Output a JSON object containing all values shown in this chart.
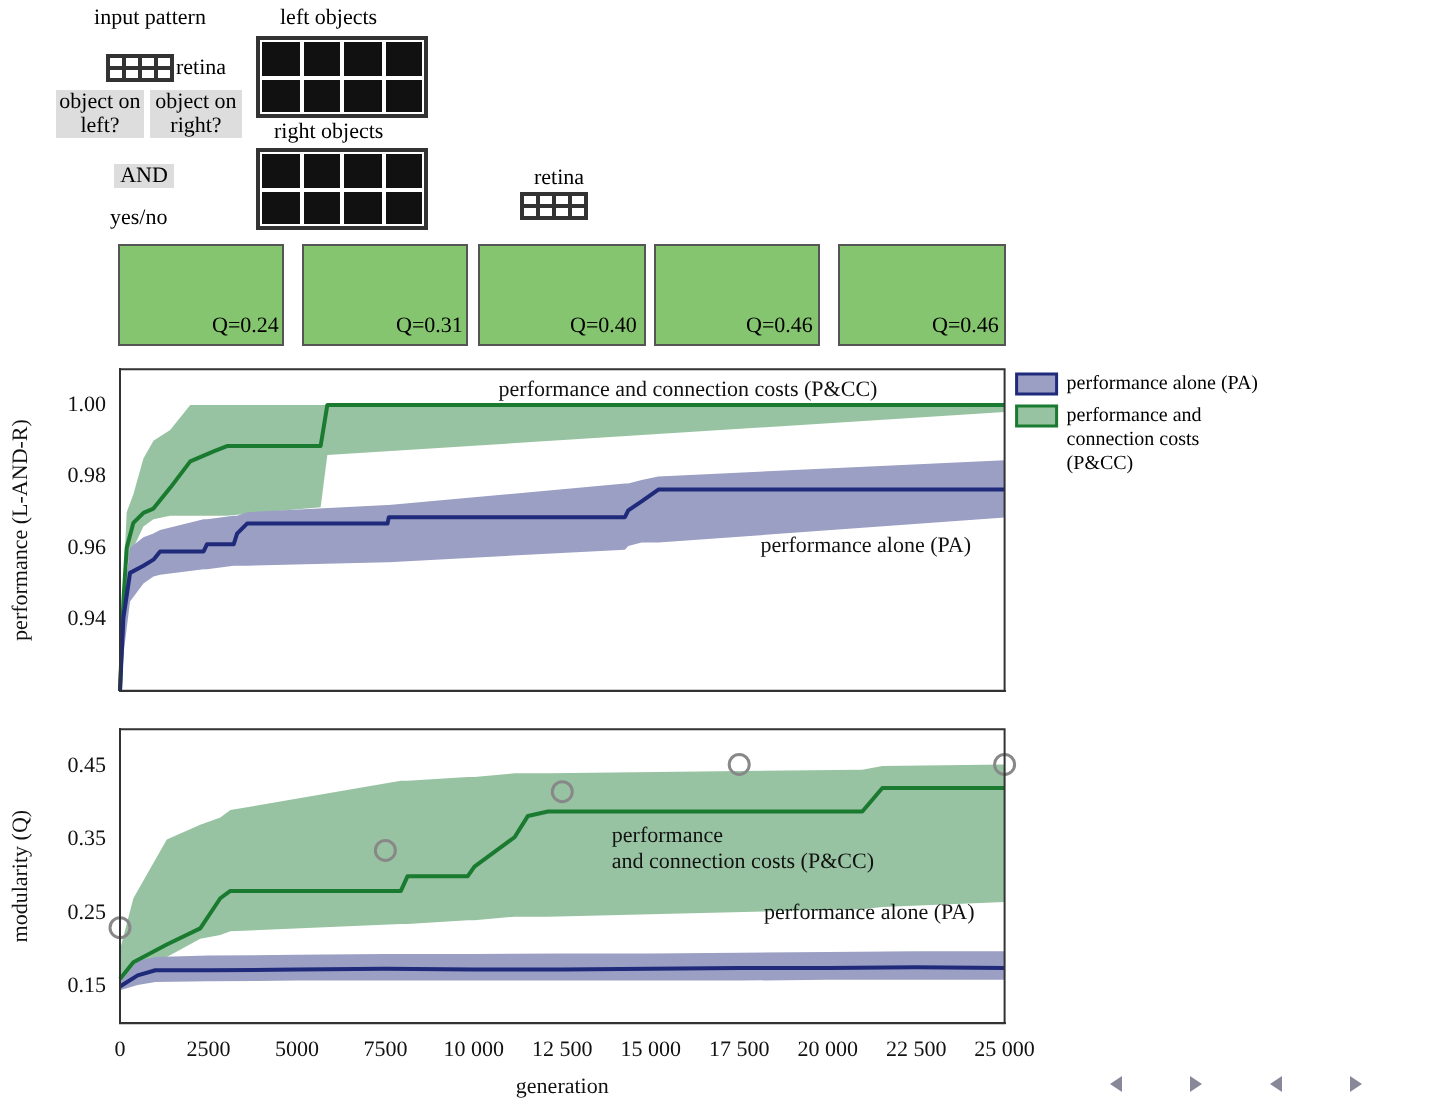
{
  "chart_data": [
    {
      "type": "line",
      "ylabel": "performance (L-AND-R)",
      "xlim": [
        0,
        25000
      ],
      "ylim": [
        0.92,
        1.01
      ],
      "xticks": [
        0,
        2500,
        5000,
        7500,
        10000,
        12500,
        15000,
        17500,
        20000,
        22500,
        25000
      ],
      "yticks": [
        0.94,
        0.96,
        0.98,
        {
          "value": 1,
          "label": "1.00"
        }
      ],
      "tick_labels": "y",
      "grid": false,
      "legend": "top right",
      "marker": "none",
      "line_style": "solid",
      "annotations": [
        "input pattern",
        "retina",
        "object on left?",
        "object on right?",
        "AND",
        "yes/no",
        "left objects",
        "right objects",
        "retina",
        "Q=0.24",
        "Q=0.31",
        "Q=0.40",
        "Q=0.46",
        "Q=0.46"
      ],
      "series": [
        {
          "name": "performance alone (PA)",
          "color": "#1f2a7a",
          "x": [
            0,
            95,
            284,
            662,
            945,
            1134,
            2363,
            2457,
            3213,
            3308,
            3591,
            7560,
            7598,
            14270,
            14364,
            14742,
            15215,
            25000
          ],
          "values": [
            0.92,
            0.9404,
            0.953,
            0.955,
            0.9567,
            0.959,
            0.959,
            0.961,
            0.961,
            0.964,
            0.9668,
            0.9668,
            0.9686,
            0.9686,
            0.9705,
            0.973,
            0.9763,
            0.9763
          ],
          "upper": [
            0.92,
            0.945,
            0.96,
            0.963,
            0.964,
            0.965,
            0.968,
            0.968,
            0.969,
            0.969,
            0.97,
            0.972,
            0.972,
            0.978,
            0.978,
            0.979,
            0.98,
            0.9845
          ],
          "lower": [
            0.92,
            0.93,
            0.945,
            0.95,
            0.952,
            0.9525,
            0.954,
            0.954,
            0.955,
            0.955,
            0.955,
            0.956,
            0.956,
            0.9595,
            0.9605,
            0.9615,
            0.9615,
            0.9685
          ]
        },
        {
          "name": "performance and connection costs (P&CC)",
          "color": "#1a7a30",
          "x": [
            0,
            95,
            189,
            378,
            662,
            945,
            1418,
            1985,
            2646,
            3024,
            5670,
            5860,
            25000
          ],
          "values": [
            0.92,
            0.945,
            0.96,
            0.967,
            0.9698,
            0.971,
            0.9768,
            0.9842,
            0.987,
            0.9885,
            0.9885,
            1.0,
            1.0
          ],
          "upper": [
            0.92,
            0.95,
            0.97,
            0.975,
            0.985,
            0.99,
            0.993,
            1.0,
            1.0,
            1.0,
            1.0,
            1.0,
            1.0
          ],
          "lower": [
            0.92,
            0.94,
            0.955,
            0.96,
            0.966,
            0.968,
            0.969,
            0.969,
            0.969,
            0.969,
            0.9714,
            0.986,
            0.998
          ]
        }
      ]
    },
    {
      "type": "line",
      "xlabel": "generation",
      "ylabel": "modularity (Q)",
      "xlim": [
        0,
        25000
      ],
      "ylim": [
        0.1,
        0.5
      ],
      "xticks": [
        0,
        2500,
        5000,
        7500,
        {
          "value": 10000,
          "label": "10 000"
        },
        {
          "value": 12500,
          "label": "12 500"
        },
        {
          "value": 15000,
          "label": "15 000"
        },
        {
          "value": 17500,
          "label": "17 500"
        },
        {
          "value": 20000,
          "label": "20 000"
        },
        {
          "value": 22500,
          "label": "22 500"
        },
        {
          "value": 25000,
          "label": "25 000"
        }
      ],
      "yticks": [
        0.15,
        0.25,
        0.35,
        0.45
      ],
      "grid": false,
      "marker": "none",
      "line_style": "solid",
      "series": [
        {
          "name": "performance alone (PA)",
          "color": "#1f2a7a",
          "x": [
            0,
            500,
            1000,
            2500,
            5000,
            7500,
            10000,
            12500,
            15000,
            17500,
            20000,
            22500,
            25000
          ],
          "values": [
            0.15,
            0.165,
            0.172,
            0.172,
            0.173,
            0.174,
            0.173,
            0.173,
            0.174,
            0.175,
            0.175,
            0.176,
            0.175
          ],
          "upper": [
            0.155,
            0.185,
            0.19,
            0.192,
            0.193,
            0.194,
            0.194,
            0.195,
            0.195,
            0.196,
            0.197,
            0.198,
            0.198
          ],
          "lower": [
            0.145,
            0.152,
            0.156,
            0.157,
            0.158,
            0.158,
            0.158,
            0.158,
            0.158,
            0.158,
            0.159,
            0.159,
            0.159
          ]
        },
        {
          "name": "performance and connection costs (P&CC)",
          "color": "#1a7a30",
          "x": [
            0,
            378,
            1323,
            2268,
            2835,
            3119,
            7938,
            8127,
            9828,
            10017,
            11151,
            11529,
            12096,
            20979,
            21546,
            25000
          ],
          "values": [
            0.16,
            0.183,
            0.207,
            0.229,
            0.27,
            0.28,
            0.28,
            0.3,
            0.3,
            0.313,
            0.353,
            0.382,
            0.388,
            0.388,
            0.42,
            0.42
          ],
          "upper": [
            0.2,
            0.27,
            0.35,
            0.37,
            0.38,
            0.39,
            0.43,
            0.43,
            0.435,
            0.435,
            0.44,
            0.44,
            0.44,
            0.445,
            0.45,
            0.452
          ],
          "lower": [
            0.15,
            0.17,
            0.19,
            0.215,
            0.22,
            0.225,
            0.235,
            0.235,
            0.24,
            0.24,
            0.245,
            0.245,
            0.245,
            0.255,
            0.258,
            0.265
          ]
        },
        {
          "type": "scatter",
          "color": "#888888",
          "marker": "circle",
          "x": [
            0,
            7500,
            12500,
            17500,
            25000
          ],
          "values": [
            0.23,
            0.335,
            0.415,
            0.452,
            0.452
          ]
        }
      ]
    }
  ]
}
